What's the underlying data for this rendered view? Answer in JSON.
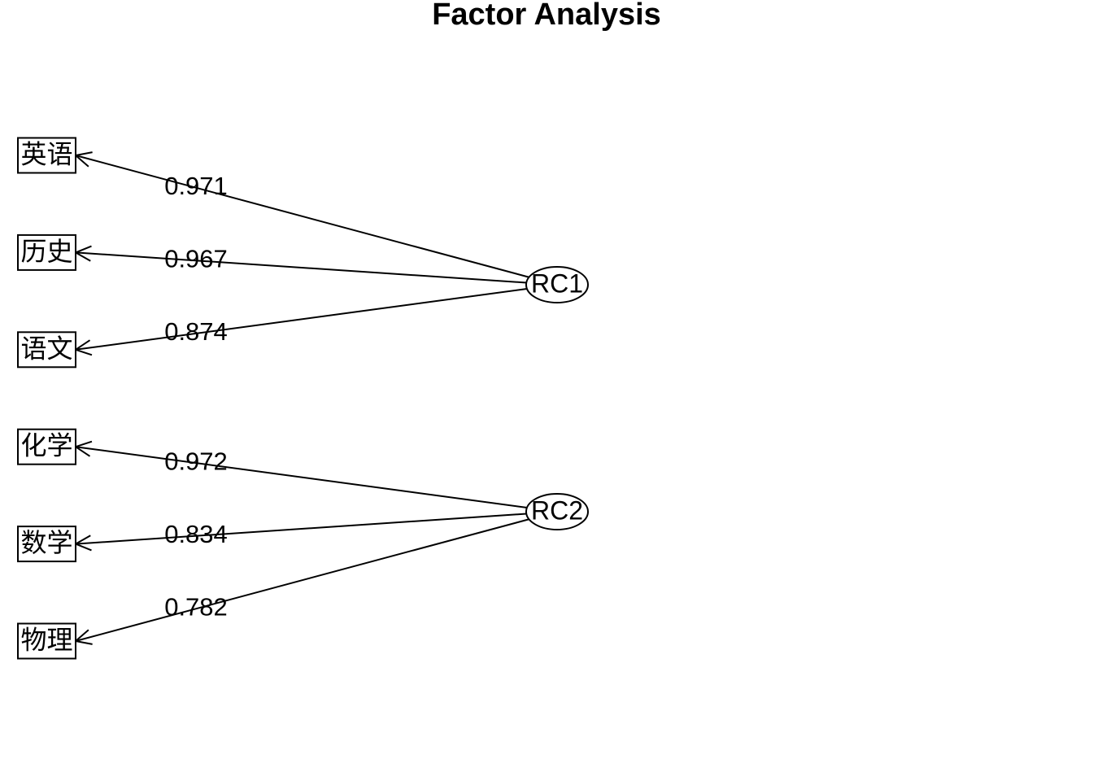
{
  "title": "Factor Analysis",
  "factors": [
    {
      "label": "RC1",
      "items": [
        {
          "label": "英语",
          "loading": "0.971"
        },
        {
          "label": "历史",
          "loading": "0.967"
        },
        {
          "label": "语文",
          "loading": "0.874"
        }
      ]
    },
    {
      "label": "RC2",
      "items": [
        {
          "label": "化学",
          "loading": "0.972"
        },
        {
          "label": "数学",
          "loading": "0.834"
        },
        {
          "label": "物理",
          "loading": "0.782"
        }
      ]
    }
  ]
}
